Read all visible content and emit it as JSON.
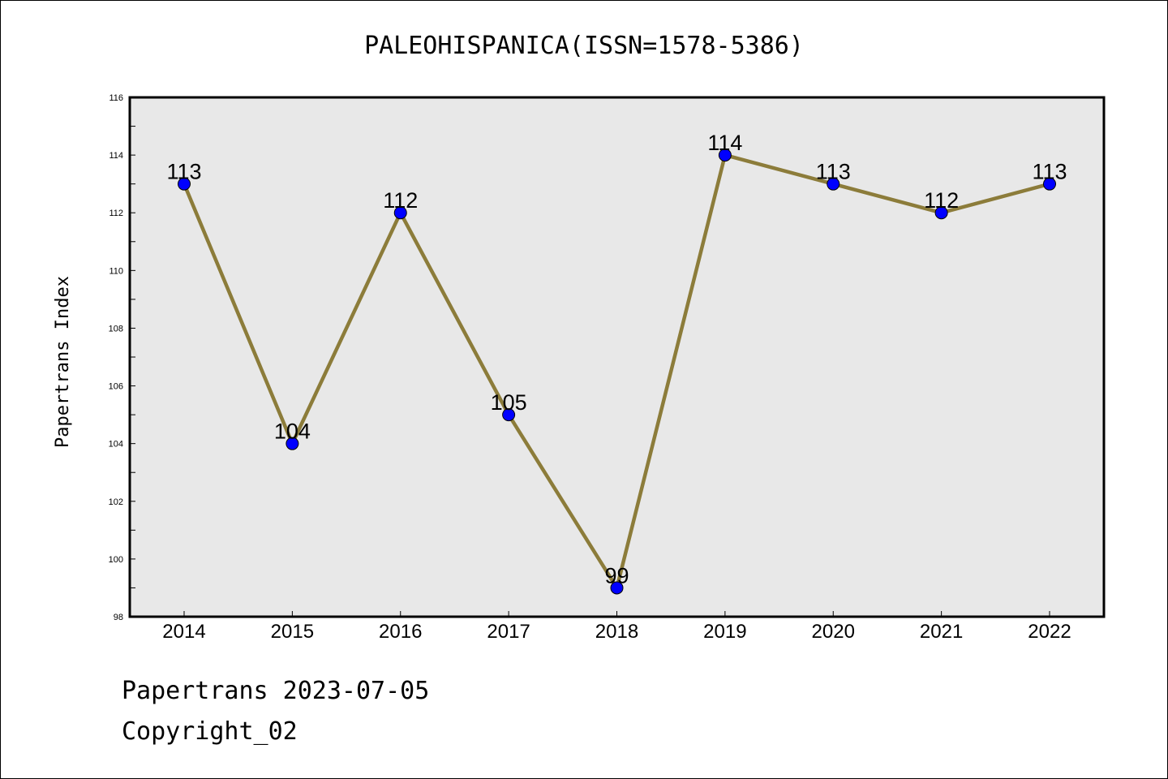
{
  "chart_data": {
    "type": "line",
    "title": "PALEOHISPANICA(ISSN=1578-5386)",
    "ylabel": "Papertrans Index",
    "xlabel": "",
    "categories": [
      "2014",
      "2015",
      "2016",
      "2017",
      "2018",
      "2019",
      "2020",
      "2021",
      "2022"
    ],
    "series": [
      {
        "values": [
          113,
          104,
          112,
          105,
          99,
          114,
          113,
          112,
          113
        ]
      }
    ],
    "data_labels": [
      "113",
      "104",
      "112",
      "105",
      "99",
      "114",
      "113",
      "112",
      "113"
    ],
    "ylim": [
      98,
      116
    ],
    "yticks": [
      "98",
      "100",
      "102",
      "104",
      "106",
      "108",
      "110",
      "112",
      "114",
      "116"
    ],
    "grid": false,
    "line_color": "#8c7c3a",
    "marker_color": "#0000ff",
    "plot_background": "#e8e8e8"
  },
  "footer": {
    "line1": "Papertrans 2023-07-05",
    "line2": "Copyright_02"
  }
}
